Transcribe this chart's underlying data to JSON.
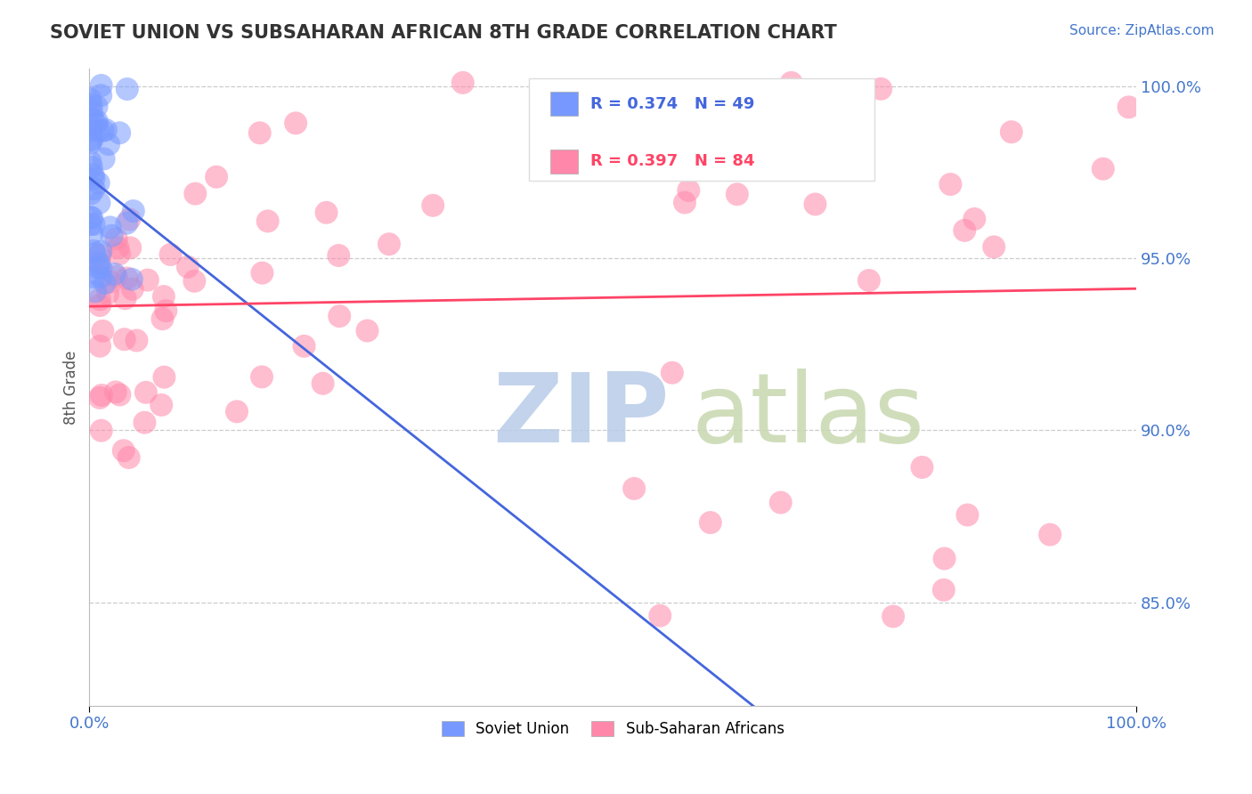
{
  "title": "SOVIET UNION VS SUBSAHARAN AFRICAN 8TH GRADE CORRELATION CHART",
  "source_text": "Source: ZipAtlas.com",
  "ylabel": "8th Grade",
  "x_min": 0.0,
  "x_max": 1.0,
  "y_min": 0.82,
  "y_max": 1.005,
  "yticks": [
    0.85,
    0.9,
    0.95,
    1.0
  ],
  "ytick_labels": [
    "85.0%",
    "90.0%",
    "95.0%",
    "100.0%"
  ],
  "legend_label_1": "Soviet Union",
  "legend_label_2": "Sub-Saharan Africans",
  "soviet_color": "#7799ff",
  "subsaharan_color": "#ff88aa",
  "soviet_line_color": "#4466dd",
  "subsaharan_line_color": "#ff4466",
  "watermark_zip": "ZIP",
  "watermark_atlas": "atlas",
  "watermark_color_zip": "#b8cce8",
  "watermark_color_atlas": "#c8d8b0",
  "title_color": "#333333",
  "axis_label_color": "#555555",
  "tick_color": "#4477cc",
  "grid_color": "#cccccc",
  "R_soviet": 0.374,
  "N_soviet": 49,
  "R_subsaharan": 0.397,
  "N_subsaharan": 84
}
